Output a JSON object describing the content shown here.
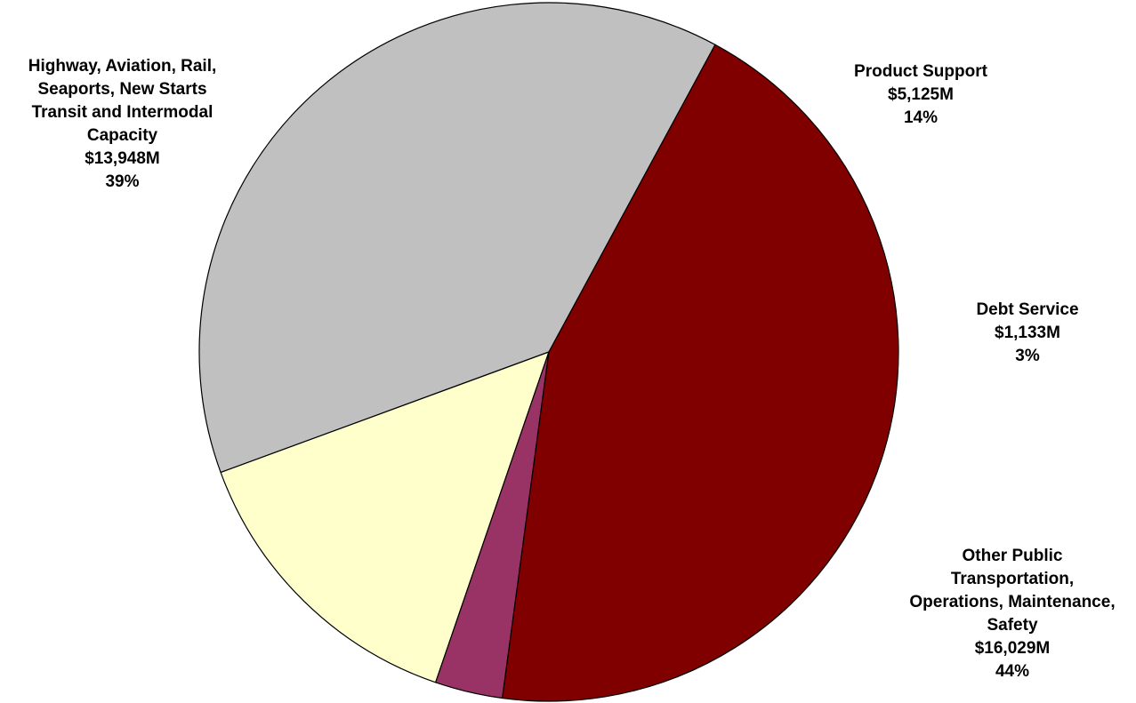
{
  "chart_data": {
    "type": "pie",
    "title": "",
    "unit": "$M",
    "slices": [
      {
        "category": "Highway, Aviation, Rail, Seaports, New Starts Transit and Intermodal Capacity",
        "label_lines": [
          "Highway, Aviation, Rail,",
          "Seaports, New Starts",
          "Transit and Intermodal",
          "Capacity"
        ],
        "value_text": "$13,948M",
        "percent_text": "39%",
        "value": 13948,
        "color": "#c0c0c0"
      },
      {
        "category": "Product Support",
        "label_lines": [
          "Product Support"
        ],
        "value_text": "$5,125M",
        "percent_text": "14%",
        "value": 5125,
        "color": "#ffffcc"
      },
      {
        "category": "Debt Service",
        "label_lines": [
          "Debt Service"
        ],
        "value_text": "$1,133M",
        "percent_text": "3%",
        "value": 1133,
        "color": "#993366"
      },
      {
        "category": "Other Public Transportation, Operations, Maintenance, Safety",
        "label_lines": [
          "Other Public",
          "Transportation,",
          "Operations, Maintenance,",
          "Safety"
        ],
        "value_text": "$16,029M",
        "percent_text": "44%",
        "value": 16029,
        "color": "#800000"
      }
    ]
  }
}
